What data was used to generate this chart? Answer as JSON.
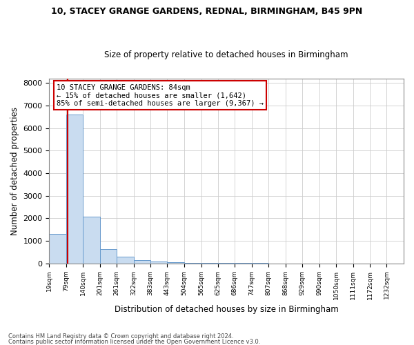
{
  "title1": "10, STACEY GRANGE GARDENS, REDNAL, BIRMINGHAM, B45 9PN",
  "title2": "Size of property relative to detached houses in Birmingham",
  "xlabel": "Distribution of detached houses by size in Birmingham",
  "ylabel": "Number of detached properties",
  "footer1": "Contains HM Land Registry data © Crown copyright and database right 2024.",
  "footer2": "Contains public sector information licensed under the Open Government Licence v3.0.",
  "annotation_line1": "10 STACEY GRANGE GARDENS: 84sqm",
  "annotation_line2": "← 15% of detached houses are smaller (1,642)",
  "annotation_line3": "85% of semi-detached houses are larger (9,367) →",
  "bar_color": "#c9dcf0",
  "bar_edge_color": "#6699cc",
  "red_line_color": "#cc0000",
  "red_line_x": 84,
  "categories": [
    "19sqm",
    "79sqm",
    "140sqm",
    "201sqm",
    "261sqm",
    "322sqm",
    "383sqm",
    "443sqm",
    "504sqm",
    "565sqm",
    "625sqm",
    "686sqm",
    "747sqm",
    "807sqm",
    "868sqm",
    "929sqm",
    "990sqm",
    "1050sqm",
    "1111sqm",
    "1172sqm",
    "1232sqm"
  ],
  "bin_edges": [
    19,
    79,
    140,
    201,
    261,
    322,
    383,
    443,
    504,
    565,
    625,
    686,
    747,
    807,
    868,
    929,
    990,
    1050,
    1111,
    1172,
    1232,
    1293
  ],
  "values": [
    1300,
    6600,
    2080,
    650,
    300,
    150,
    100,
    60,
    40,
    30,
    20,
    15,
    10,
    8,
    6,
    5,
    4,
    3,
    2,
    1,
    1
  ],
  "ylim": [
    0,
    8200
  ],
  "yticks": [
    0,
    1000,
    2000,
    3000,
    4000,
    5000,
    6000,
    7000,
    8000
  ],
  "annotation_box_edge_color": "#cc0000",
  "annotation_box_face_color": "#ffffff"
}
